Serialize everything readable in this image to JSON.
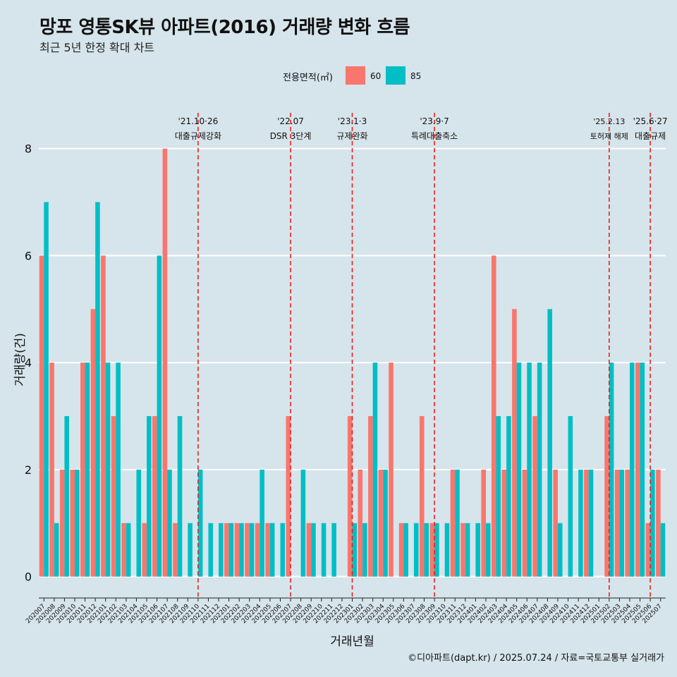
{
  "chart_data": {
    "type": "bar",
    "title": "망포 영통SK뷰 아파트(2016) 거래량 변화 흐름",
    "subtitle": "최근 5년 한정 확대 차트",
    "xlabel": "거래년월",
    "ylabel": "거래량(건)",
    "ylim": [
      -0.4,
      8.8
    ],
    "yticks": [
      0,
      2,
      4,
      6,
      8
    ],
    "legend": {
      "title": "전용면적(㎡)",
      "placement": "top-center"
    },
    "caption": "©디아파트(dapt.kr) / 2025.07.24 / 자료=국토교통부 실거래가",
    "categories": [
      "202007",
      "202008",
      "202009",
      "202010",
      "202011",
      "202012",
      "202101",
      "202102",
      "202103",
      "202104",
      "202105",
      "202106",
      "202107",
      "202108",
      "202109",
      "202110",
      "202111",
      "202112",
      "202201",
      "202202",
      "202203",
      "202204",
      "202205",
      "202206",
      "202207",
      "202208",
      "202209",
      "202210",
      "202211",
      "202212",
      "202301",
      "202302",
      "202303",
      "202304",
      "202305",
      "202306",
      "202307",
      "202308",
      "202309",
      "202310",
      "202311",
      "202312",
      "202401",
      "202402",
      "202403",
      "202404",
      "202405",
      "202406",
      "202407",
      "202408",
      "202409",
      "202410",
      "202411",
      "202412",
      "202501",
      "202502",
      "202503",
      "202504",
      "202505",
      "202506",
      "202507"
    ],
    "series": [
      {
        "name": "60",
        "color": "#f8766d",
        "values": [
          6,
          4,
          2,
          2,
          4,
          5,
          6,
          3,
          1,
          0,
          1,
          3,
          8,
          1,
          0,
          0,
          0,
          0,
          1,
          1,
          1,
          1,
          1,
          0,
          3,
          0,
          1,
          0,
          0,
          0,
          3,
          2,
          3,
          2,
          4,
          1,
          0,
          3,
          1,
          0,
          2,
          1,
          0,
          2,
          6,
          2,
          5,
          2,
          3,
          0,
          2,
          0,
          0,
          2,
          0,
          3,
          2,
          2,
          4,
          1,
          2
        ]
      },
      {
        "name": "85",
        "color": "#00bfc4",
        "values": [
          7,
          1,
          3,
          2,
          4,
          7,
          4,
          4,
          1,
          2,
          3,
          6,
          2,
          3,
          1,
          2,
          1,
          1,
          1,
          1,
          1,
          2,
          1,
          1,
          0,
          2,
          1,
          1,
          1,
          0,
          1,
          1,
          4,
          2,
          0,
          1,
          1,
          1,
          1,
          1,
          2,
          1,
          1,
          1,
          3,
          3,
          4,
          4,
          4,
          5,
          1,
          3,
          2,
          2,
          0,
          4,
          2,
          4,
          4,
          2,
          1
        ]
      }
    ],
    "events": [
      {
        "at": "202110",
        "date": "'21.10·26",
        "label": "대출규제강화"
      },
      {
        "at": "202207",
        "date": "'22.07",
        "label": "DSR 3단계"
      },
      {
        "at": "202301",
        "date": "'23.1·3",
        "label": "규제완화"
      },
      {
        "at": "202309",
        "date": "'23.9·7",
        "label": "특례대출축소"
      },
      {
        "at": "202502",
        "date": "'25.2.13",
        "label": "토허제 해제"
      },
      {
        "at": "202506",
        "date": "'25.6·27",
        "label": "대출규제"
      }
    ]
  }
}
